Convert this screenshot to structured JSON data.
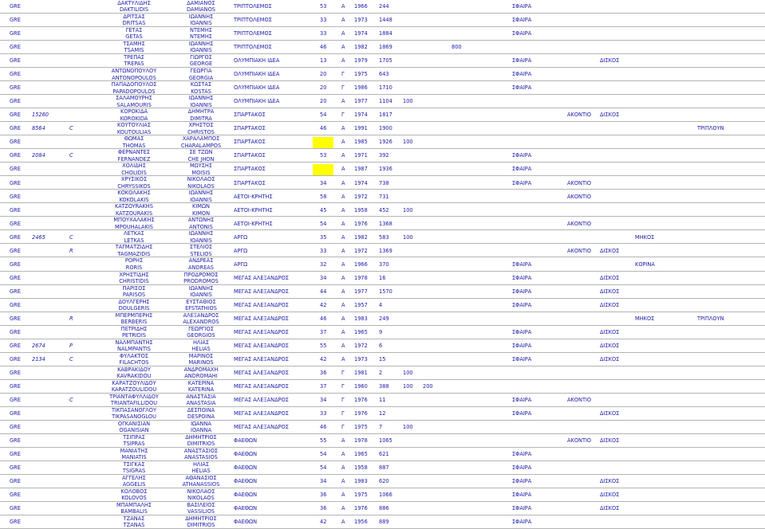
{
  "rows": [
    {
      "country": "GRE",
      "code": "",
      "cat": "",
      "surname_gr": "ΔΑΚΤΥΛΙΔΗΣ",
      "surname": "DAKTILIDIS",
      "firstname_gr": "ΔΑΜΙΑΝΟΣ",
      "firstname": "DAMIANOS",
      "club": "ΤΡΙΠΤΟΛΕΜΟΣ",
      "age": "53",
      "group": "A",
      "year": "1966",
      "id": "244",
      "e1": "ΣΦΑΙΡΑ"
    },
    {
      "country": "GRE",
      "code": "",
      "cat": "",
      "surname_gr": "ΔΡΙΤΣΑΣ",
      "surname": "DRITSAS",
      "firstname_gr": "ΙΩΑΝΝΗΣ",
      "firstname": "IOANNIS",
      "club": "ΤΡΙΠΤΟΛΕΜΟΣ",
      "age": "33",
      "group": "A",
      "year": "1973",
      "id": "1448",
      "e1": "ΣΦΑΙΡΑ"
    },
    {
      "country": "GRE",
      "code": "",
      "cat": "",
      "surname_gr": "ΓΕΤΑΣ",
      "surname": "GETAS",
      "firstname_gr": "ΝΤΕΜΗΣ",
      "firstname": "ΝΤΕΜΗΣ",
      "club": "ΤΡΙΠΤΟΛΕΜΟΣ",
      "age": "33",
      "group": "A",
      "year": "1974",
      "id": "1884",
      "e1": "ΣΦΑΙΡΑ"
    },
    {
      "country": "GRE",
      "code": "",
      "cat": "",
      "surname_gr": "ΤΣΑΜΗΣ",
      "surname": "TSAMIS",
      "firstname_gr": "ΙΩΑΝΝΗΣ",
      "firstname": "IOANNIS",
      "club": "ΤΡΙΠΤΟΛΕΜΟΣ",
      "age": "46",
      "group": "A",
      "year": "1982",
      "id": "1869",
      "extra3": "800"
    },
    {
      "country": "GRE",
      "code": "",
      "cat": "",
      "surname_gr": "ΤΡΕΠΑΣ",
      "surname": "TREPAS",
      "firstname_gr": "ΓΙΩΡΓΟΣ",
      "firstname": "GEORGE",
      "club": "ΟΛΥΜΠΙΑΚΗ ΙΔΕΑ",
      "age": "13",
      "group": "A",
      "year": "1979",
      "id": "1705",
      "e1": "ΣΦΑΙΡΑ",
      "e3": "ΔΙΣΚΟΣ"
    },
    {
      "country": "GRE",
      "code": "",
      "cat": "",
      "surname_gr": "ΑΝΤΩΝΟΠΟΥΛΟΥ",
      "surname": "ANTONOPOULOS",
      "firstname_gr": "ΓΕΩΡΓΙΑ",
      "firstname": "GEORGIA",
      "club": "ΟΛΥΜΠΙΑΚΗ ΙΔΕΑ",
      "age": "20",
      "group": "Γ",
      "year": "1975",
      "id": "643",
      "e1": "ΣΦΑΙΡΑ"
    },
    {
      "country": "GRE",
      "code": "",
      "cat": "",
      "surname_gr": "ΠΑΠΑΔΟΠΟΥΛΟΣ",
      "surname": "PAPADOPOULOS",
      "firstname_gr": "ΚΩΣΤΑΣ",
      "firstname": "KOSTAS",
      "club": "ΟΛΥΜΠΙΑΚΗ ΙΔΕΑ",
      "age": "20",
      "group": "Γ",
      "year": "1986",
      "id": "1710",
      "e1": "ΣΦΑΙΡΑ"
    },
    {
      "country": "GRE",
      "code": "",
      "cat": "",
      "surname_gr": "ΣΑΛΑΜΟΥΡΗΣ",
      "surname": "SALAMOURIS",
      "firstname_gr": "ΙΩΑΝΝΗΣ",
      "firstname": "IOANNIS",
      "club": "ΟΛΥΜΠΙΑΚΗ ΙΔΕΑ",
      "age": "20",
      "group": "A",
      "year": "1977",
      "id": "1104",
      "extra": "100"
    },
    {
      "country": "GRE",
      "code": "15260",
      "cat": "",
      "surname_gr": "ΚΟΡΟΚΙΔΑ",
      "surname": "KOROKIDA",
      "firstname_gr": "ΔΗΜΗΤΡΑ",
      "firstname": "DIMITRA",
      "club": "ΣΠΑΡΤΑΚΟΣ",
      "age": "54",
      "group": "Γ",
      "year": "1974",
      "id": "1817",
      "e2": "ΑΚΟΝΤΙΟ",
      "e3": "ΔΙΣΚΟΣ"
    },
    {
      "country": "GRE",
      "code": "8564",
      "cat": "C",
      "surname_gr": "ΚΟΥΤΟΥΛΙΑΣ",
      "surname": "KOUTOULIAS",
      "firstname_gr": "ΧΡΗΣΤΟΣ",
      "firstname": "CHRISTOS",
      "club": "ΣΠΑΡΤΑΚΟΣ",
      "age": "46",
      "group": "A",
      "year": "1991",
      "id": "1900",
      "e5": "ΤΡΙΠΛΟΥΝ"
    },
    {
      "country": "GRE",
      "code": "",
      "cat": "",
      "surname_gr": "ΘΩΜΑΣ",
      "surname": "THOMAS",
      "firstname_gr": "ΧΑΡΑΛΑΜΠΟΣ",
      "firstname": "CHARALAMPOS",
      "club": "ΣΠΑΡΤΑΚΟΣ",
      "age": "",
      "group": "A",
      "year": "1985",
      "id": "1926",
      "extra": "100",
      "hl": true
    },
    {
      "country": "GRE",
      "code": "2084",
      "cat": "C",
      "surname_gr": "ΦΕΡΝΑΝΤΕΣ",
      "surname": "FERNANDEZ",
      "firstname_gr": "ΣΕ ΤΖΩΝ",
      "firstname": "CHE JHON",
      "club": "ΣΠΑΡΤΑΚΟΣ",
      "age": "53",
      "group": "A",
      "year": "1971",
      "id": "392",
      "e1": "ΣΦΑΙΡΑ"
    },
    {
      "country": "GRE",
      "code": "",
      "cat": "",
      "surname_gr": "ΧΟΛΙΔΗΣ",
      "surname": "CHOLIDIS",
      "firstname_gr": "ΜΩΥΣΗΣ",
      "firstname": "MOISIS",
      "club": "ΣΠΑΡΤΑΚΟΣ",
      "age": "",
      "group": "A",
      "year": "1987",
      "id": "1936",
      "e1": "ΣΦΑΙΡΑ",
      "hl": true
    },
    {
      "country": "GRE",
      "code": "",
      "cat": "",
      "surname_gr": "ΧΡΥΣΙΚΟΣ",
      "surname": "CHRYSSIKOS",
      "firstname_gr": "ΝΙΚΟΛΑΟΣ",
      "firstname": "NIKOLAOS",
      "club": "ΣΠΑΡΤΑΚΟΣ",
      "age": "34",
      "group": "A",
      "year": "1974",
      "id": "738",
      "e1": "ΣΦΑΙΡΑ",
      "e2": "ΑΚΟΝΤΙΟ"
    },
    {
      "country": "GRE",
      "code": "",
      "cat": "",
      "surname_gr": "ΚΟΚΟΛΑΚΗΣ",
      "surname": "KOKOLAKIS",
      "firstname_gr": "ΙΩΑΝΝΗΣ",
      "firstname": "IOANNIS",
      "club": "ΑΕΤΟΙ-ΚΡΗΤΗΣ",
      "age": "58",
      "group": "A",
      "year": "1972",
      "id": "731",
      "e2": "ΑΚΟΝΤΙΟ"
    },
    {
      "country": "GRE",
      "code": "",
      "cat": "",
      "surname_gr": "KATZOYRAKHS",
      "surname": "KATZOURAKIS",
      "firstname_gr": "ΚΙΜΩΝ",
      "firstname": "KIMON",
      "club": "ΑΕΤΟΙ-ΚΡΗΤΗΣ",
      "age": "45",
      "group": "A",
      "year": "1958",
      "id": "452",
      "extra": "100"
    },
    {
      "country": "GRE",
      "code": "",
      "cat": "",
      "surname_gr": "ΜΠΟΥΧΑΛΑΚΗΣ",
      "surname": "MPOUHALAKIS",
      "firstname_gr": "ΑΝΤΩΝΗΣ",
      "firstname": "ANTONIS",
      "club": "ΑΕΤΟΙ-ΚΡΗΤΗΣ",
      "age": "54",
      "group": "A",
      "year": "1976",
      "id": "1368",
      "e2": "ΑΚΟΝΤΙΟ"
    },
    {
      "country": "GRE",
      "code": "2465",
      "cat": "C",
      "surname_gr": "ΛΕΤΚΑΣ",
      "surname": "LETKAS",
      "firstname_gr": "ΙΩΑΝΝΗΣ",
      "firstname": "IOANNIS",
      "club": "ΑΡΓΩ",
      "age": "35",
      "group": "A",
      "year": "1982",
      "id": "583",
      "extra": "100",
      "e4": "ΜΗΚΟΣ"
    },
    {
      "country": "GRE",
      "code": "",
      "cat": "R",
      "surname_gr": "ΤΑΓΜΑΤΖΙΔΗΣ",
      "surname": "TAGMAZIDIS",
      "firstname_gr": "ΣΤΕΛΙΟΣ",
      "firstname": "STELIOS",
      "club": "ΑΡΓΩ",
      "age": "33",
      "group": "A",
      "year": "1972",
      "id": "1369",
      "e2": "ΑΚΟΝΤΙΟ",
      "e3": "ΔΙΣΚΟΣ"
    },
    {
      "country": "GRE",
      "code": "",
      "cat": "",
      "surname_gr": "ΡΟΡΗΣ",
      "surname": "RORIS",
      "firstname_gr": "ΑΝΔΡΕΑΣ",
      "firstname": "ANDREAS",
      "club": "ΑΡΓΩ",
      "age": "32",
      "group": "A",
      "year": "1966",
      "id": "370",
      "e1": "ΣΦΑΙΡΑ",
      "e4": "ΚΟΡΙΝΑ"
    },
    {
      "country": "GRE",
      "code": "",
      "cat": "",
      "surname_gr": "ΧΡΗΣΤΙΔΗΣ",
      "surname": "CHRISTIDIS",
      "firstname_gr": "ΠΡΟΔΡΟΜΟΣ",
      "firstname": "PRODROMOS",
      "club": "ΜΕΓΑΣ ΑΛΕΞΑΝΔΡΟΣ",
      "age": "34",
      "group": "A",
      "year": "1978",
      "id": "16",
      "e1": "ΣΦΑΙΡΑ",
      "e3": "ΔΙΣΚΟΣ"
    },
    {
      "country": "GRE",
      "code": "",
      "cat": "",
      "surname_gr": "ΠΑΡΙΣΟΣ",
      "surname": "PARISOS",
      "firstname_gr": "ΙΩΑΝΝΗΣ",
      "firstname": "IOANNIS",
      "club": "ΜΕΓΑΣ ΑΛΕΞΑΝΔΡΟΣ",
      "age": "44",
      "group": "A",
      "year": "1977",
      "id": "1570",
      "e1": "ΣΦΑΙΡΑ",
      "e3": "ΔΙΣΚΟΣ"
    },
    {
      "country": "GRE",
      "code": "",
      "cat": "",
      "surname_gr": "ΔΟΥΛΓΕΡΗΣ",
      "surname": "DOULGERIS",
      "firstname_gr": "ΕΥΣΤΑΘΙΟΣ",
      "firstname": "EFSTATHIOS",
      "club": "ΜΕΓΑΣ ΑΛΕΞΑΝΔΡΟΣ",
      "age": "42",
      "group": "A",
      "year": "1957",
      "id": "4",
      "e1": "ΣΦΑΙΡΑ",
      "e3": "ΔΙΣΚΟΣ"
    },
    {
      "country": "GRE",
      "code": "",
      "cat": "R",
      "surname_gr": "ΜΠΕΡΜΠΕΡΗΣ",
      "surname": "BERBERIS",
      "firstname_gr": "ΑΛΕΞΑΝΔΡΟΣ",
      "firstname": "ALEXANDROS",
      "club": "ΜΕΓΑΣ ΑΛΕΞΑΝΔΡΟΣ",
      "age": "46",
      "group": "A",
      "year": "1983",
      "id": "249",
      "e4": "ΜΗΚΟΣ",
      "e5": "ΤΡΙΠΛΟΥΝ"
    },
    {
      "country": "GRE",
      "code": "",
      "cat": "",
      "surname_gr": "ΠΕΤΡΙΔΗΣ",
      "surname": "PETRIDIS",
      "firstname_gr": "ΓΕΩΡΓΙΟΣ",
      "firstname": "GEORGIOS",
      "club": "ΜΕΓΑΣ ΑΛΕΞΑΝΔΡΟΣ",
      "age": "37",
      "group": "A",
      "year": "1965",
      "id": "9",
      "e1": "ΣΦΑΙΡΑ",
      "e3": "ΔΙΣΚΟΣ"
    },
    {
      "country": "GRE",
      "code": "2674",
      "cat": "P",
      "surname_gr": "ΝΑΛΜΠΑΝΤΗΣ",
      "surname": "NALMPANTIS",
      "firstname_gr": "ΗΛΙΑΣ",
      "firstname": "HELIAS",
      "club": "ΜΕΓΑΣ ΑΛΕΞΑΝΔΡΟΣ",
      "age": "55",
      "group": "A",
      "year": "1972",
      "id": "6",
      "e1": "ΣΦΑΙΡΑ",
      "e3": "ΔΙΣΚΟΣ"
    },
    {
      "country": "GRE",
      "code": "2134",
      "cat": "C",
      "surname_gr": "ΦΥΛΑΚΤΟΣ",
      "surname": "FILACHTOS",
      "firstname_gr": "ΜΑΡΙΝΟΣ",
      "firstname": "MARINOS",
      "club": "ΜΕΓΑΣ ΑΛΕΞΑΝΔΡΟΣ",
      "age": "42",
      "group": "A",
      "year": "1973",
      "id": "15",
      "e1": "ΣΦΑΙΡΑ",
      "e3": "ΔΙΣΚΟΣ"
    },
    {
      "country": "GRE",
      "code": "",
      "cat": "",
      "surname_gr": "ΚΑΒΡΑΚΙΔΟΥ",
      "surname": "KAVRAKIDOU",
      "firstname_gr": "ΑΝΔΡΟΜΑΧΗ",
      "firstname": "ANDROMAHI",
      "club": "ΜΕΓΑΣ ΑΛΕΞΑΝΔΡΟΣ",
      "age": "36",
      "group": "Γ",
      "year": "1981",
      "id": "2",
      "extra": "100"
    },
    {
      "country": "GRE",
      "code": "",
      "cat": "",
      "surname_gr": "ΚΑΡΑΤΖΟΥΛΙΔΟΥ",
      "surname": "KARATZOULIDOU",
      "firstname_gr": "ΚΑΤΕΡΙΝΑ",
      "firstname": "KATERINA",
      "club": "ΜΕΓΑΣ ΑΛΕΞΑΝΔΡΟΣ",
      "age": "37",
      "group": "Γ",
      "year": "1960",
      "id": "388",
      "extra": "100",
      "extra2": "200"
    },
    {
      "country": "GRE",
      "code": "",
      "cat": "C",
      "surname_gr": "ΤΡΙΑΝΤΑΦΥΛΛΙΔΟΥ",
      "surname": "TRIANTAFILLIDOU",
      "firstname_gr": "ΑΝΑΣΤΑΣΙΑ",
      "firstname": "ANASTASIA",
      "club": "ΜΕΓΑΣ ΑΛΕΞΑΝΔΡΟΣ",
      "age": "34",
      "group": "Γ",
      "year": "1976",
      "id": "11",
      "e1": "ΣΦΑΙΡΑ",
      "e2": "ΑΚΟΝΤΙΟ"
    },
    {
      "country": "GRE",
      "code": "",
      "cat": "",
      "surname_gr": "ΤΙΚΠΑΣΑΝΟΓΛΟΥ",
      "surname": "TIKPASANOGLOU",
      "firstname_gr": "ΔΕΣΠΟΙΝΑ",
      "firstname": "DESPOINA",
      "club": "ΜΕΓΑΣ ΑΛΕΞΑΝΔΡΟΣ",
      "age": "33",
      "group": "Γ",
      "year": "1976",
      "id": "12",
      "e1": "ΣΦΑΙΡΑ",
      "e3": "ΔΙΣΚΟΣ"
    },
    {
      "country": "GRE",
      "code": "",
      "cat": "",
      "surname_gr": "ΟΓΚΑΝΙΣΙΑΝ",
      "surname": "OGANISIAN",
      "firstname_gr": "ΙΩΑΝΝΑ",
      "firstname": "IOANNA",
      "club": "ΜΕΓΑΣ ΑΛΕΞΑΝΔΡΟΣ",
      "age": "46",
      "group": "Γ",
      "year": "1975",
      "id": "7",
      "extra": "100"
    },
    {
      "country": "GRE",
      "code": "",
      "cat": "",
      "surname_gr": "ΤΣΙΠΡΑΣ",
      "surname": "TSIPRAS",
      "firstname_gr": "ΔΗΜΗΤΡΙΟΣ",
      "firstname": "DIMITRIOS",
      "club": "ΦΑΕΘΩΝ",
      "age": "55",
      "group": "A",
      "year": "1978",
      "id": "1065",
      "e2": "ΑΚΟΝΤΙΟ",
      "e3": "ΔΙΣΚΟΣ"
    },
    {
      "country": "GRE",
      "code": "",
      "cat": "",
      "surname_gr": "ΜΑΝΙΑΤΗΣ",
      "surname": "MANIATIS",
      "firstname_gr": "ΑΝΑΣΤΑΣΙΟΣ",
      "firstname": "ANASTASIOS",
      "club": "ΦΑΕΘΩΝ",
      "age": "54",
      "group": "A",
      "year": "1965",
      "id": "621",
      "e1": "ΣΦΑΙΡΑ"
    },
    {
      "country": "GRE",
      "code": "",
      "cat": "",
      "surname_gr": "ΤΣΙΓΚΑΣ",
      "surname": "TSIGRAS",
      "firstname_gr": "ΗΛΙΑΣ",
      "firstname": "HELIAS",
      "club": "ΦΑΕΘΩΝ",
      "age": "54",
      "group": "A",
      "year": "1958",
      "id": "887",
      "e1": "ΣΦΑΙΡΑ"
    },
    {
      "country": "GRE",
      "code": "",
      "cat": "",
      "surname_gr": "ΑΓΓΕΛΗΣ",
      "surname": "AGGELIS",
      "firstname_gr": "ΑΘΑΝΑΣΙΟΣ",
      "firstname": "ATHANASSIOS",
      "club": "ΦΑΕΘΩΝ",
      "age": "34",
      "group": "A",
      "year": "1983",
      "id": "620",
      "e1": "ΣΦΑΙΡΑ",
      "e3": "ΔΙΣΚΟΣ"
    },
    {
      "country": "GRE",
      "code": "",
      "cat": "",
      "surname_gr": "ΚΟΛΟΒΟΣ",
      "surname": "KOLOVOS",
      "firstname_gr": "ΝΙΚΟΛΑΟΣ",
      "firstname": "NIKOLAOS",
      "club": "ΦΑΕΘΩΝ",
      "age": "36",
      "group": "A",
      "year": "1975",
      "id": "1066",
      "e1": "ΣΦΑΙΡΑ",
      "e3": "ΔΙΣΚΟΣ"
    },
    {
      "country": "GRE",
      "code": "",
      "cat": "",
      "surname_gr": "ΜΠΑΜΠΑΛΗΣ",
      "surname": "BAMBALIS",
      "firstname_gr": "ΒΑΣΙΛΕΙΟΣ",
      "firstname": "VASSILIOS",
      "club": "ΦΑΕΘΩΝ",
      "age": "36",
      "group": "A",
      "year": "1976",
      "id": "886",
      "e1": "ΣΦΑΙΡΑ",
      "e3": "ΔΙΣΚΟΣ"
    },
    {
      "country": "GRE",
      "code": "",
      "cat": "",
      "surname_gr": "ΤΖΑΝΑΣ",
      "surname": "TZANAS",
      "firstname_gr": "ΔΗΜΗΤΡΙΟΣ",
      "firstname": "DIMITRIOS",
      "club": "ΦΑΕΘΩΝ",
      "age": "42",
      "group": "A",
      "year": "1956",
      "id": "889",
      "e1": "ΣΦΑΙΡΑ"
    }
  ]
}
